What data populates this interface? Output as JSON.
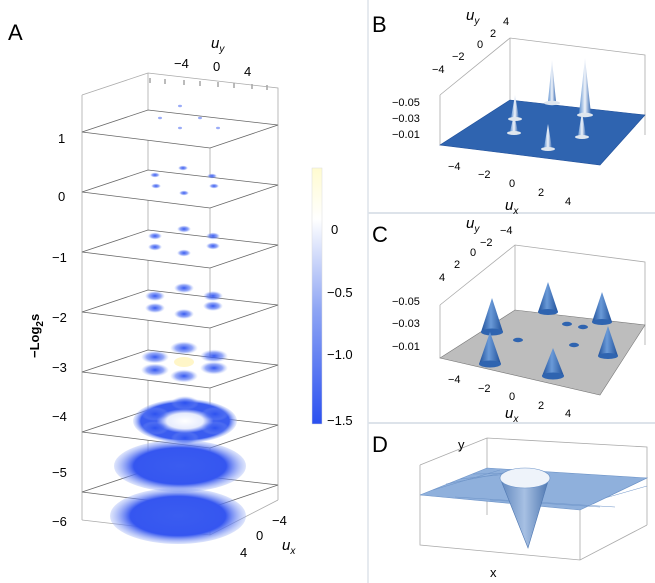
{
  "panels": {
    "A": {
      "letter": "A",
      "uy_label": "u",
      "uy_sub": "y",
      "ux_label": "u",
      "ux_sub": "x",
      "uy_ticks": [
        "−4",
        "0",
        "4"
      ],
      "ux_ticks": [
        "−4",
        "0",
        "4"
      ],
      "s_axis_label": "−Log",
      "s_axis_sub": "2",
      "s_axis_suffix": "s",
      "levels": [
        "1",
        "0",
        "−1",
        "−2",
        "−3",
        "−4",
        "−5",
        "−6"
      ],
      "colorbar_ticks": [
        "0",
        "−0.5",
        "−1.0",
        "−1.5"
      ],
      "colorbar_values": [
        0,
        -0.5,
        -1.0,
        -1.5
      ],
      "colorbar_colors": {
        "top": "#fffbd0",
        "mid": "#ffffff",
        "bottom": "#2b50f0"
      }
    },
    "B": {
      "letter": "B",
      "uy_label": "u",
      "uy_sub": "y",
      "ux_label": "u",
      "ux_sub": "x",
      "uy_ticks": [
        "4",
        "2",
        "0",
        "−2",
        "−4"
      ],
      "ux_ticks": [
        "−4",
        "−2",
        "0",
        "2",
        "4"
      ],
      "z_ticks": [
        "−0.05",
        "−0.03",
        "−0.01"
      ],
      "surface_color": "#2f64b0"
    },
    "C": {
      "letter": "C",
      "uy_label": "u",
      "uy_sub": "y",
      "ux_label": "u",
      "ux_sub": "x",
      "uy_ticks": [
        "−4",
        "−2",
        "0",
        "2",
        "4"
      ],
      "ux_ticks": [
        "−4",
        "−2",
        "0",
        "2",
        "4"
      ],
      "z_ticks": [
        "−0.05",
        "−0.03",
        "−0.01"
      ],
      "plane_color": "#bdbdbd",
      "cone_color": "#2f64b0"
    },
    "D": {
      "letter": "D",
      "x_label": "x",
      "y_label": "y",
      "surface_color": "#8fb0dc"
    }
  }
}
